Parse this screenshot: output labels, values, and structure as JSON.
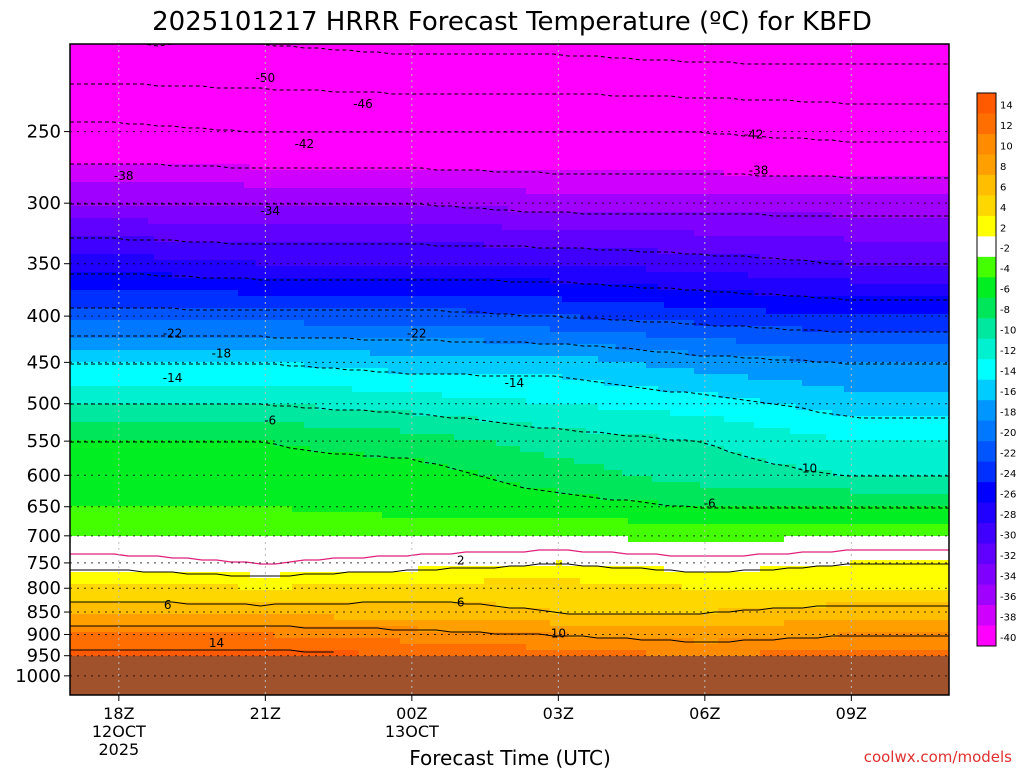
{
  "chart_data": {
    "type": "heatmap",
    "title": "2025101217 HRRR Forecast Temperature (ºC) for KBFD",
    "xlabel": "Forecast Time (UTC)",
    "ylabel": "",
    "credit": "coolwx.com/models",
    "x_ticks": [
      {
        "t": 0,
        "lines": [
          "18Z",
          "12OCT",
          "2025"
        ]
      },
      {
        "t": 3,
        "lines": [
          "21Z"
        ]
      },
      {
        "t": 6,
        "lines": [
          "00Z",
          "13OCT"
        ]
      },
      {
        "t": 9,
        "lines": [
          "03Z"
        ]
      },
      {
        "t": 12,
        "lines": [
          "06Z"
        ]
      },
      {
        "t": 15,
        "lines": [
          "09Z"
        ]
      }
    ],
    "x_range_hours": [
      -1,
      17
    ],
    "y_ticks_hpa": [
      250,
      300,
      350,
      400,
      450,
      500,
      550,
      600,
      650,
      700,
      750,
      800,
      850,
      900,
      950,
      1000
    ],
    "y_range_hpa": [
      200,
      1050
    ],
    "y_scale": "log-pressure",
    "ground_pressure_hpa": 945,
    "ground_color": "#a0522d",
    "colorbar_levels": [
      14,
      12,
      10,
      8,
      6,
      4,
      2,
      -2,
      -4,
      -6,
      -8,
      -10,
      -12,
      -14,
      -16,
      -18,
      -20,
      -22,
      -24,
      -26,
      -28,
      -30,
      -32,
      -34,
      -36,
      -38,
      -40
    ],
    "colorbar_labels": [
      "14",
      "12",
      "10",
      "8",
      "6",
      "4",
      "2",
      "-2",
      "-4",
      "-6",
      "-8",
      "-10",
      "-12",
      "-14",
      "-16",
      "-18",
      "-20",
      "-22",
      "-24",
      "-26",
      "-28",
      "-30",
      "-32",
      "-34",
      "-36",
      "-38",
      "-40"
    ],
    "colorbar_colors": [
      "#ff5a00",
      "#ff6e00",
      "#ff8c00",
      "#ffa000",
      "#ffbe00",
      "#ffd700",
      "#ffff00",
      "#ffffff",
      "#44ff00",
      "#00ee22",
      "#00e65a",
      "#00e8a0",
      "#00f0d0",
      "#00ffff",
      "#00ccff",
      "#0096ff",
      "#0078ff",
      "#0055ff",
      "#0030ff",
      "#0000ff",
      "#2000ff",
      "#4000ff",
      "#6000ff",
      "#8000ff",
      "#a000ff",
      "#d000ff",
      "#ff00ff"
    ],
    "profile_hours": [
      0,
      3,
      6,
      9,
      12,
      15
    ],
    "profiles": [
      {
        "p": 950,
        "t": [
          15,
          15,
          14,
          13,
          12,
          13
        ]
      },
      {
        "p": 900,
        "t": [
          12,
          12,
          11,
          10,
          9,
          10
        ]
      },
      {
        "p": 850,
        "t": [
          7,
          7,
          7,
          6,
          6,
          7
        ]
      },
      {
        "p": 800,
        "t": [
          5,
          4,
          5,
          5,
          4,
          4
        ]
      },
      {
        "p": 750,
        "t": [
          1,
          0,
          1,
          2,
          1,
          2
        ]
      },
      {
        "p": 700,
        "t": [
          -2,
          -2,
          -2,
          -2,
          -3,
          -2
        ]
      },
      {
        "p": 650,
        "t": [
          -4,
          -4,
          -5,
          -5,
          -6,
          -6
        ]
      },
      {
        "p": 600,
        "t": [
          -5,
          -5,
          -5,
          -7,
          -9,
          -10
        ]
      },
      {
        "p": 550,
        "t": [
          -6,
          -6,
          -7,
          -9,
          -10,
          -12
        ]
      },
      {
        "p": 500,
        "t": [
          -10,
          -10,
          -11,
          -12,
          -13,
          -15
        ]
      },
      {
        "p": 450,
        "t": [
          -14,
          -14,
          -15,
          -15,
          -17,
          -18
        ]
      },
      {
        "p": 400,
        "t": [
          -21,
          -21,
          -21,
          -22,
          -23,
          -24
        ]
      },
      {
        "p": 350,
        "t": [
          -27,
          -28,
          -28,
          -28,
          -29,
          -30
        ]
      },
      {
        "p": 300,
        "t": [
          -34,
          -34,
          -34,
          -35,
          -35,
          -35
        ]
      },
      {
        "p": 250,
        "t": [
          -41,
          -42,
          -42,
          -42,
          -42,
          -43
        ]
      },
      {
        "p": 200,
        "t": [
          -50,
          -50,
          -51,
          -51,
          -52,
          -52
        ]
      }
    ],
    "contour_labels": [
      {
        "text": "-50",
        "t": 3,
        "p": 218
      },
      {
        "text": "-46",
        "t": 5,
        "p": 233
      },
      {
        "text": "-42",
        "t": 3.8,
        "p": 258
      },
      {
        "text": "-42",
        "t": 13,
        "p": 252
      },
      {
        "text": "-38",
        "t": 0.1,
        "p": 280
      },
      {
        "text": "-38",
        "t": 13.1,
        "p": 276
      },
      {
        "text": "-34",
        "t": 3.1,
        "p": 306
      },
      {
        "text": "-22",
        "t": 1.1,
        "p": 418
      },
      {
        "text": "-22",
        "t": 6.1,
        "p": 418
      },
      {
        "text": "-18",
        "t": 2.1,
        "p": 440
      },
      {
        "text": "-14",
        "t": 1.1,
        "p": 468
      },
      {
        "text": "-14",
        "t": 8.1,
        "p": 474
      },
      {
        "text": "-6",
        "t": 3.1,
        "p": 522
      },
      {
        "text": "-10",
        "t": 14.1,
        "p": 590
      },
      {
        "text": "-6",
        "t": 12.1,
        "p": 645
      },
      {
        "text": "2",
        "t": 7,
        "p": 745
      },
      {
        "text": "6",
        "t": 1,
        "p": 835
      },
      {
        "text": "6",
        "t": 7,
        "p": 830
      },
      {
        "text": "10",
        "t": 9,
        "p": 898
      },
      {
        "text": "14",
        "t": 2,
        "p": 920
      }
    ]
  }
}
